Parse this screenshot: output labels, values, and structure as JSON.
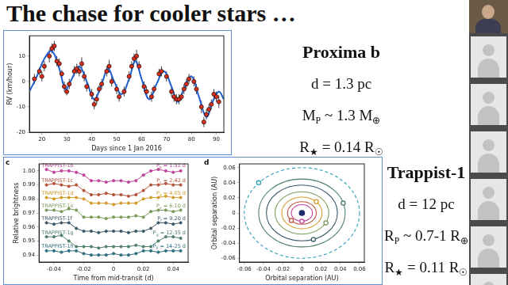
{
  "title": "The chase for cooler stars …",
  "chart_data": [
    {
      "type": "scatter",
      "x_label": "Days since 1 Jan 2016",
      "y_label": "RV (km/hour)",
      "xlim": [
        15,
        93
      ],
      "xticks": [
        20,
        30,
        40,
        50,
        60,
        70,
        80,
        90
      ],
      "ylim": [
        -20,
        18
      ],
      "yticks": [
        -20,
        -10,
        0,
        10
      ],
      "grid": false,
      "series": [
        {
          "type": "line",
          "color": "#1f5fd0",
          "line_style": "solid",
          "x": [
            15,
            18,
            21,
            24,
            27,
            29.5,
            32,
            35,
            38,
            41,
            44,
            46.5,
            49,
            52,
            55,
            57.5,
            60,
            63,
            66,
            69,
            72,
            74.5,
            77,
            80,
            83,
            86,
            88.5,
            91,
            93
          ],
          "values": [
            -4,
            2,
            9,
            12,
            5,
            -3,
            1,
            6,
            0,
            -7,
            -1,
            5,
            0,
            -5,
            1,
            8,
            1,
            -7,
            -1,
            4,
            -2,
            -8,
            -3,
            2,
            -6,
            -14,
            -8,
            -4,
            -7
          ]
        },
        {
          "type": "scatter",
          "color": "#d7301f",
          "marker": "circle",
          "x": [
            17,
            19,
            20,
            21,
            23,
            24,
            25,
            26,
            27,
            28,
            29,
            30,
            31,
            33,
            34,
            35,
            36,
            37,
            38,
            40,
            41,
            42,
            43,
            44,
            46,
            47,
            48,
            50,
            51,
            53,
            55,
            56,
            57,
            58,
            59,
            61,
            62,
            64,
            65,
            67,
            68,
            70,
            72,
            73,
            74,
            75,
            76,
            77,
            78,
            79,
            81,
            82,
            84,
            85,
            86,
            87,
            88,
            89,
            90,
            91
          ],
          "values": [
            1,
            4,
            2,
            6,
            10,
            13,
            14,
            8,
            7,
            3,
            -2,
            -4,
            -1,
            4,
            5,
            4,
            7,
            2,
            -2,
            -5,
            -9,
            -7,
            -3,
            -1,
            4,
            6,
            0,
            -3,
            -6,
            -4,
            2,
            6,
            9,
            10,
            6,
            -2,
            -4,
            -6,
            -3,
            3,
            4,
            2,
            -4,
            -6,
            -7,
            -7,
            -6,
            -3,
            -1,
            1,
            0,
            -3,
            -10,
            -16,
            -13,
            -11,
            -9,
            -5,
            -6,
            -8
          ],
          "errors": [
            2,
            1.5,
            2,
            2,
            2.5,
            2,
            2,
            2,
            2,
            1.5,
            2,
            1.5,
            2,
            2,
            2,
            2,
            2.5,
            2,
            2,
            2,
            2,
            2,
            1.5,
            2,
            2,
            2.5,
            2,
            2,
            2,
            2,
            2,
            2,
            2,
            2.5,
            2,
            2,
            2,
            2,
            1.5,
            2,
            2,
            2,
            2,
            2,
            2,
            2,
            1.5,
            2,
            2,
            2,
            2,
            2,
            2.5,
            2,
            2,
            2,
            2,
            2,
            2,
            2.5
          ]
        }
      ]
    },
    {
      "type": "line",
      "panel": "c",
      "x_label": "Time from mid-transit (d)",
      "y_label": "Relative brightness",
      "xlim": [
        -0.05,
        0.05
      ],
      "xticks": [
        -0.04,
        -0.02,
        0,
        0.02,
        0.04
      ],
      "ylim": [
        0.935,
        1.005
      ],
      "yticks": [
        0.94,
        0.95,
        0.96,
        0.97,
        0.98,
        0.99,
        {
          "value": 1,
          "label": "1.00"
        }
      ],
      "grid": false,
      "x": [
        -0.045,
        -0.04,
        -0.035,
        -0.03,
        -0.025,
        -0.02,
        -0.015,
        -0.01,
        -0.005,
        0,
        0.005,
        0.01,
        0.015,
        0.02,
        0.025,
        0.03,
        0.035,
        0.04,
        0.045
      ],
      "series": [
        {
          "name": "TRAPPIST-1b",
          "period_label": [
            {
              "text": "P"
            },
            {
              "sub": "b"
            },
            {
              "text": " = 1.51 d"
            }
          ],
          "color": "#c0449c",
          "marker": "circle",
          "line_style": "solid",
          "values": [
            1.001,
            0.999,
            1.0,
            1.0,
            0.999,
            0.997,
            0.993,
            0.993,
            0.992,
            0.993,
            0.993,
            0.992,
            0.993,
            0.997,
            1.0,
            1.001,
            1.0,
            0.999,
            1.0
          ]
        },
        {
          "name": "TRAPPIST-1c",
          "period_label": [
            {
              "text": "P"
            },
            {
              "sub": "c"
            },
            {
              "text": " = 2.42 d"
            }
          ],
          "color": "#b5533c",
          "marker": "circle",
          "line_style": "solid",
          "values": [
            0.99,
            0.991,
            0.99,
            0.989,
            0.99,
            0.986,
            0.983,
            0.983,
            0.984,
            0.983,
            0.983,
            0.982,
            0.983,
            0.986,
            0.99,
            0.99,
            0.991,
            0.99,
            0.99
          ]
        },
        {
          "name": "TRAPPIST-1d",
          "period_label": [
            {
              "text": "P"
            },
            {
              "sub": "d"
            },
            {
              "text": " = 4.05 d"
            }
          ],
          "color": "#d39b2a",
          "marker": "circle",
          "line_style": "solid",
          "values": [
            0.981,
            0.98,
            0.981,
            0.981,
            0.981,
            0.98,
            0.977,
            0.977,
            0.977,
            0.976,
            0.977,
            0.977,
            0.977,
            0.98,
            0.981,
            0.981,
            0.982,
            0.981,
            0.981
          ]
        },
        {
          "name": "TRAPPIST-1e",
          "period_label": [
            {
              "text": "P"
            },
            {
              "sub": "e"
            },
            {
              "text": " = 6.10 d"
            }
          ],
          "color": "#7a9a5a",
          "marker": "circle",
          "line_style": "solid",
          "values": [
            0.972,
            0.972,
            0.971,
            0.973,
            0.972,
            0.967,
            0.967,
            0.967,
            0.966,
            0.967,
            0.967,
            0.967,
            0.968,
            0.967,
            0.971,
            0.972,
            0.972,
            0.971,
            0.972
          ]
        },
        {
          "name": "TRAPPIST-1f",
          "period_label": [
            {
              "text": "P"
            },
            {
              "sub": "f"
            },
            {
              "text": " = 9.20 d"
            }
          ],
          "color": "#3d5a6c",
          "marker": "circle",
          "line_style": "solid",
          "values": [
            0.963,
            0.962,
            0.963,
            0.963,
            0.959,
            0.957,
            0.957,
            0.956,
            0.957,
            0.957,
            0.957,
            0.956,
            0.957,
            0.957,
            0.959,
            0.963,
            0.963,
            0.962,
            0.963
          ]
        },
        {
          "name": "TRAPPIST-1g",
          "period_label": [
            {
              "text": "P"
            },
            {
              "sub": "g"
            },
            {
              "text": " = 12.35 d"
            }
          ],
          "color": "#4f7f6a",
          "marker": "circle",
          "line_style": "solid",
          "values": [
            0.953,
            0.953,
            0.954,
            0.95,
            0.946,
            0.946,
            0.946,
            0.945,
            0.946,
            0.946,
            0.946,
            0.946,
            0.947,
            0.946,
            0.946,
            0.95,
            0.953,
            0.953,
            0.952
          ]
        },
        {
          "name": "TRAPPIST-1h",
          "period_label": [
            {
              "text": "P"
            },
            {
              "sub": "h"
            },
            {
              "text": " = 14-25 d"
            }
          ],
          "color": "#2e6f80",
          "marker": "circle",
          "line_style": "solid",
          "values": [
            0.943,
            0.943,
            0.942,
            0.943,
            0.943,
            0.941,
            0.94,
            0.94,
            0.94,
            0.941,
            0.94,
            0.94,
            0.941,
            0.943,
            0.943,
            0.942,
            0.943,
            0.943,
            0.943
          ]
        }
      ]
    },
    {
      "type": "scatter",
      "panel": "d",
      "x_label": "Orbital separation (AU)",
      "y_label": "Orbital separation (AU)",
      "xlim": [
        -0.065,
        0.065
      ],
      "xticks": [
        -0.06,
        -0.04,
        -0.02,
        0,
        0.02,
        0.04,
        0.06
      ],
      "ylim": [
        -0.065,
        0.065
      ],
      "yticks": [
        -0.06,
        -0.04,
        -0.02,
        0,
        0.02,
        0.04,
        0.06
      ],
      "grid": false,
      "series": [
        {
          "color": "#1f2d6b",
          "marker": "circle",
          "x": [
            0
          ],
          "values": [
            0
          ]
        },
        {
          "color": "#c0449c",
          "marker": "circle",
          "line_style": "solid",
          "orbit_radius": 0.011,
          "x": [
            0
          ],
          "values": [
            -0.011
          ]
        },
        {
          "color": "#b5533c",
          "marker": "circle",
          "line_style": "solid",
          "orbit_radius": 0.015,
          "x": [
            -0.011
          ],
          "values": [
            -0.01
          ]
        },
        {
          "color": "#d39b2a",
          "marker": "circle",
          "line_style": "solid",
          "orbit_radius": 0.021,
          "x": [
            0.015
          ],
          "values": [
            0.015
          ]
        },
        {
          "color": "#7a9a5a",
          "marker": "circle",
          "line_style": "solid",
          "orbit_radius": 0.028,
          "x": [
            0.025
          ],
          "values": [
            -0.013
          ]
        },
        {
          "color": "#3d5a6c",
          "marker": "circle",
          "line_style": "solid",
          "orbit_radius": 0.037,
          "x": [
            0.012
          ],
          "values": [
            -0.035
          ]
        },
        {
          "color": "#4f7f6a",
          "marker": "circle",
          "line_style": "solid",
          "orbit_radius": 0.045,
          "x": [
            0.043
          ],
          "values": [
            0.013
          ]
        },
        {
          "color": "#2e9fb8",
          "marker": "circle",
          "line_style": "dashed",
          "orbit_radius": 0.06,
          "x": [
            -0.045
          ],
          "values": [
            0.04
          ]
        }
      ]
    }
  ],
  "facts": [
    {
      "heading": "Proxima b",
      "lines": [
        [
          {
            "text": "d = 1.3 pc"
          }
        ],
        [
          {
            "text": "M"
          },
          {
            "sub": "P"
          },
          {
            "text": " ~ 1.3 M"
          },
          {
            "sub": "⊕"
          }
        ],
        [
          {
            "text": "R"
          },
          {
            "sub": "★"
          },
          {
            "text": " = 0.14 R"
          },
          {
            "sub": "☉"
          }
        ]
      ]
    },
    {
      "heading": "Trappist-1",
      "lines": [
        [
          {
            "text": "d = 12 pc"
          }
        ],
        [
          {
            "text": "R"
          },
          {
            "sub": "P"
          },
          {
            "text": " ~ 0.7-1 R"
          },
          {
            "sub": "⊕"
          }
        ],
        [
          {
            "text": "R"
          },
          {
            "sub": "★"
          },
          {
            "text": " = 0.11 R"
          },
          {
            "sub": "☉"
          }
        ]
      ]
    }
  ]
}
